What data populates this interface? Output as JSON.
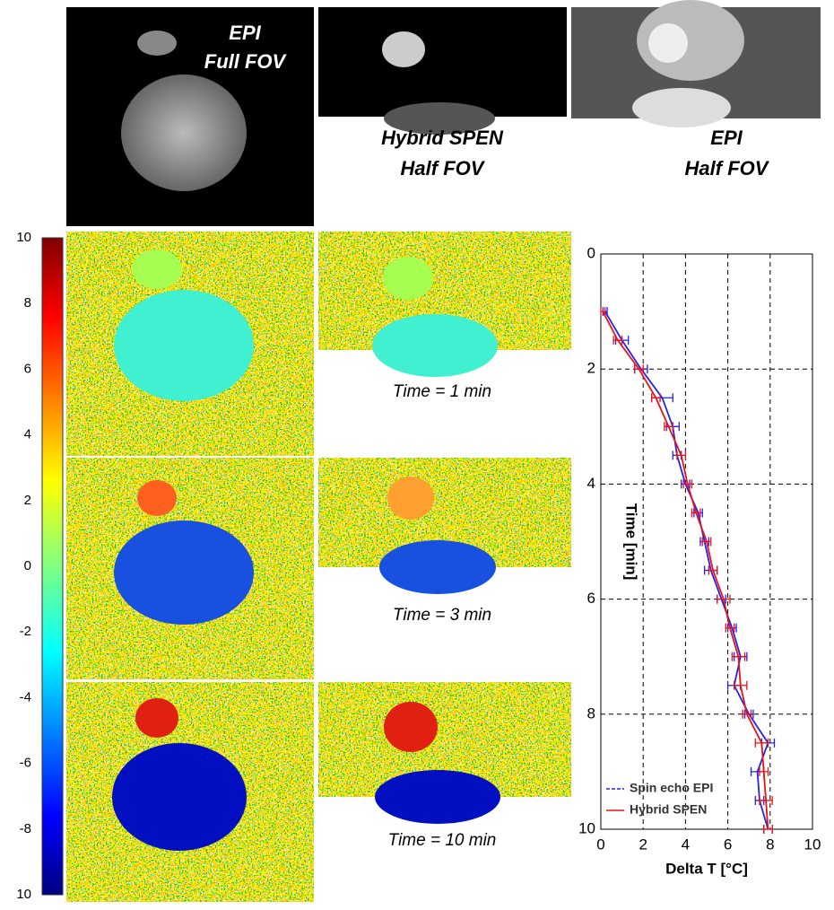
{
  "top_labels": [
    [
      "EPI",
      "Full FOV"
    ],
    [
      "Hybrid SPEN",
      "Half FOV"
    ],
    [
      "EPI",
      "Half FOV"
    ]
  ],
  "time_labels": [
    "Time = 1  min",
    "Time = 3  min",
    "Time = 10  min"
  ],
  "colorbar": {
    "labels": [
      "10",
      "8",
      "6",
      "4",
      "2",
      "0",
      "-2",
      "-4",
      "-6",
      "-8",
      "10"
    ]
  },
  "chart_data": {
    "type": "line",
    "xlabel": "Delta T [°C]",
    "ylabel": "Time [min]",
    "xlim": [
      0,
      10
    ],
    "ylim": [
      0,
      10
    ],
    "y_inverted": true,
    "xticks": [
      0,
      2,
      4,
      6,
      8,
      10
    ],
    "yticks": [
      0,
      2,
      4,
      6,
      8,
      10
    ],
    "grid": true,
    "legend": "lower left",
    "y": [
      1,
      1.5,
      2,
      2.5,
      3,
      3.5,
      4,
      4.5,
      5,
      5.5,
      6,
      6.5,
      7,
      7.5,
      8,
      8.5,
      9,
      9.5,
      10
    ],
    "series": [
      {
        "name": "Spin echo EPI",
        "color": "#2222ee",
        "x": [
          0.2,
          1.0,
          1.9,
          2.9,
          3.4,
          3.6,
          4.0,
          4.6,
          4.9,
          5.2,
          5.7,
          6.2,
          6.6,
          6.3,
          7.0,
          7.9,
          7.4,
          7.5,
          7.9
        ],
        "xerr": [
          0.1,
          0.3,
          0.3,
          0.5,
          0.3,
          0.2,
          0.2,
          0.2,
          0.2,
          0.3,
          0.2,
          0.2,
          0.3,
          0.3,
          0.2,
          0.3,
          0.3,
          0.2,
          0.2
        ]
      },
      {
        "name": "Hybrid SPEN",
        "color": "#ee1111",
        "x": [
          0.1,
          0.8,
          1.8,
          2.6,
          3.2,
          3.8,
          4.1,
          4.5,
          5.0,
          5.3,
          5.8,
          6.1,
          6.5,
          6.6,
          6.9,
          7.6,
          7.7,
          7.8,
          7.9
        ],
        "xerr": [
          0.1,
          0.2,
          0.2,
          0.2,
          0.2,
          0.2,
          0.2,
          0.2,
          0.2,
          0.2,
          0.3,
          0.2,
          0.3,
          0.3,
          0.2,
          0.3,
          0.2,
          0.3,
          0.2
        ]
      }
    ]
  }
}
